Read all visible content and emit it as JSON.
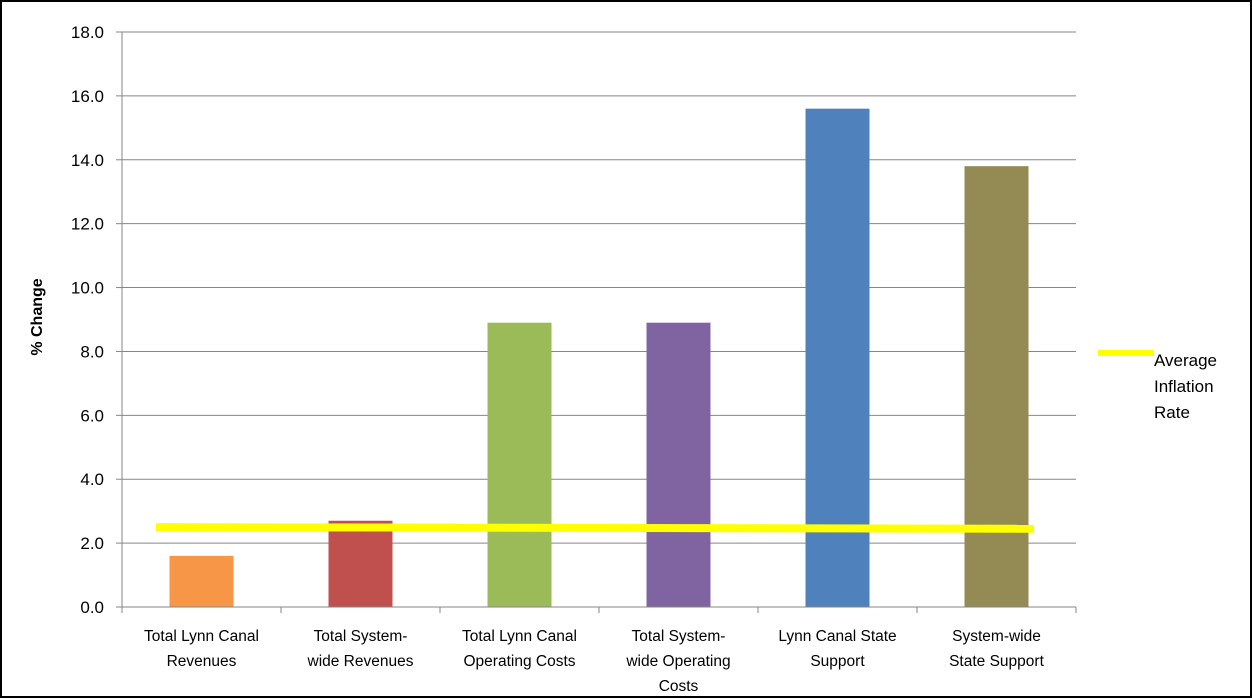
{
  "chart_data": {
    "type": "bar",
    "categories": [
      [
        "Total Lynn Canal",
        "Revenues"
      ],
      [
        "Total System-",
        "wide Revenues"
      ],
      [
        "Total Lynn Canal",
        "Operating Costs"
      ],
      [
        "Total System-",
        "wide Operating",
        "Costs"
      ],
      [
        "Lynn Canal State",
        "Support"
      ],
      [
        "System-wide",
        "State Support"
      ]
    ],
    "values": [
      1.6,
      2.7,
      8.9,
      8.9,
      15.6,
      13.8
    ],
    "colors": [
      "#F79646",
      "#C0504D",
      "#9BBB59",
      "#8064A2",
      "#4F81BD",
      "#948A54"
    ],
    "ylabel": "% Change",
    "ylim": [
      0,
      18
    ],
    "yticks": [
      "0.0",
      "2.0",
      "4.0",
      "6.0",
      "8.0",
      "10.0",
      "12.0",
      "14.0",
      "16.0",
      "18.0"
    ],
    "grid": true,
    "reference_line": {
      "name": [
        "Average",
        "Inflation",
        "Rate"
      ],
      "start_value": 2.5,
      "end_value": 2.45,
      "color": "#FFFF00"
    },
    "legend_position": "right"
  }
}
